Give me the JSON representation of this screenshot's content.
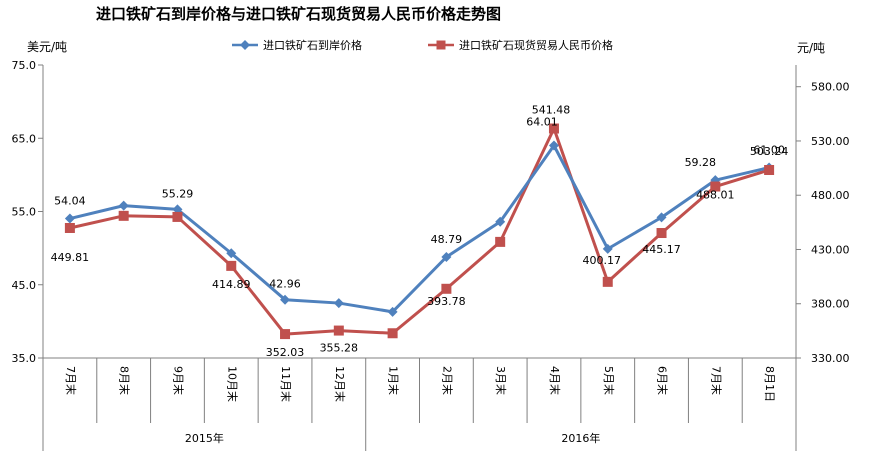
{
  "chart_data": {
    "type": "line",
    "title": "进口铁矿石到岸价格与进口铁矿石现货贸易人民币价格走势图",
    "left_unit": "美元/吨",
    "right_unit": "元/吨",
    "categories": [
      "7月末",
      "8月末",
      "9月末",
      "10月末",
      "11月末",
      "12月末",
      "1月末",
      "2月末",
      "3月末",
      "4月末",
      "5月末",
      "6月末",
      "7月末",
      "8月1日"
    ],
    "groups": [
      {
        "label": "2015年",
        "start": 0,
        "end": 5
      },
      {
        "label": "2016年",
        "start": 6,
        "end": 13
      }
    ],
    "y_left": {
      "min": 35.0,
      "max": 75.0,
      "ticks": [
        "35.0",
        "45.0",
        "55.0",
        "65.0",
        "75.0"
      ]
    },
    "y_right": {
      "min": 330,
      "max": 600,
      "ticks": [
        "330.00",
        "380.00",
        "430.00",
        "480.00",
        "530.00",
        "580.00"
      ]
    },
    "legend_position": "top-center",
    "series": [
      {
        "name": "进口铁矿石到岸价格",
        "axis": "left",
        "color": "#4F81BD",
        "marker": "diamond",
        "values": [
          54.04,
          55.8,
          55.29,
          49.3,
          42.96,
          42.5,
          41.3,
          48.79,
          53.6,
          64.01,
          49.9,
          54.2,
          59.28,
          61.0
        ],
        "labels": [
          "54.04",
          "",
          "55.29",
          "",
          "42.96",
          "",
          "",
          "48.79",
          "",
          "64.01",
          "",
          "",
          "59.28",
          "61.00"
        ]
      },
      {
        "name": "进口铁矿石现货贸易人民币价格",
        "axis": "right",
        "color": "#C0504D",
        "marker": "square",
        "values": [
          449.81,
          461.0,
          460.0,
          414.89,
          352.03,
          355.28,
          352.8,
          393.78,
          437.0,
          541.48,
          400.17,
          445.17,
          488.01,
          503.24
        ],
        "labels": [
          "449.81",
          "",
          "",
          "414.89",
          "352.03",
          "355.28",
          "",
          "393.78",
          "",
          "541.48",
          "400.17",
          "445.17",
          "488.01",
          "503.24"
        ]
      }
    ]
  }
}
